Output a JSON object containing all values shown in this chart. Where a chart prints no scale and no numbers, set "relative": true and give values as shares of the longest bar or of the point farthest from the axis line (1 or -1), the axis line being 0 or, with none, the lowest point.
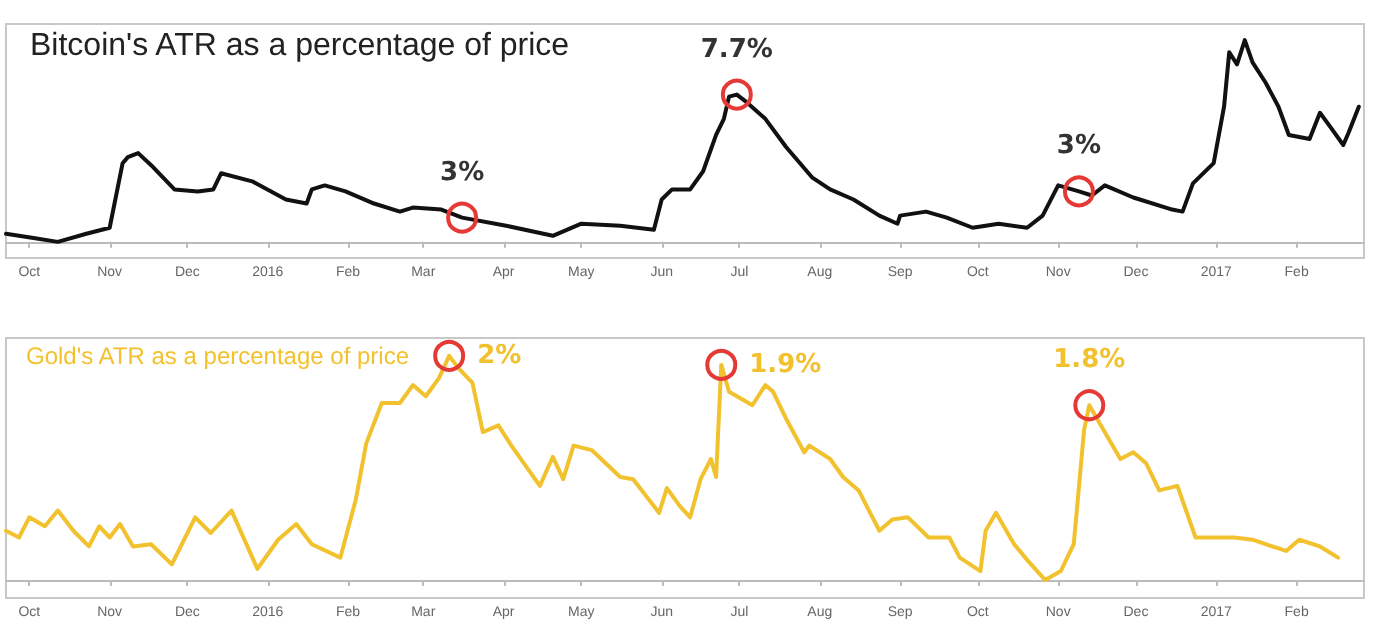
{
  "chart_data": [
    {
      "type": "line",
      "title": "Bitcoin's ATR as a percentage of price",
      "relative": true,
      "color": "#111111",
      "grid": false,
      "marker": "none",
      "line_style": "solid",
      "xlim": [
        "2015-09-22",
        "2017-02-27"
      ],
      "xticks": [
        {
          "value": "2015-10-01",
          "label": "Oct"
        },
        {
          "value": "2015-11-01",
          "label": "Nov"
        },
        {
          "value": "2015-12-01",
          "label": "Dec"
        },
        {
          "value": "2016-01-01",
          "label": "2016"
        },
        {
          "value": "2016-02-01",
          "label": "Feb"
        },
        {
          "value": "2016-03-01",
          "label": "Mar"
        },
        {
          "value": "2016-04-01",
          "label": "Apr"
        },
        {
          "value": "2016-05-01",
          "label": "May"
        },
        {
          "value": "2016-06-01",
          "label": "Jun"
        },
        {
          "value": "2016-07-01",
          "label": "Jul"
        },
        {
          "value": "2016-08-01",
          "label": "Aug"
        },
        {
          "value": "2016-09-01",
          "label": "Sep"
        },
        {
          "value": "2016-10-01",
          "label": "Oct"
        },
        {
          "value": "2016-11-01",
          "label": "Nov"
        },
        {
          "value": "2016-12-01",
          "label": "Dec"
        },
        {
          "value": "2017-01-01",
          "label": "2017"
        },
        {
          "value": "2017-02-01",
          "label": "Feb"
        }
      ],
      "x": [
        "2015-09-22",
        "2015-10-02",
        "2015-10-12",
        "2015-10-23",
        "2015-11-01",
        "2015-11-06",
        "2015-11-08",
        "2015-11-12",
        "2015-11-17",
        "2015-11-26",
        "2015-12-05",
        "2015-12-11",
        "2015-12-14",
        "2015-12-26",
        "2016-01-08",
        "2016-01-16",
        "2016-01-18",
        "2016-01-23",
        "2016-01-31",
        "2016-02-11",
        "2016-02-21",
        "2016-02-26",
        "2016-03-08",
        "2016-03-16",
        "2016-04-02",
        "2016-04-20",
        "2016-05-01",
        "2016-05-16",
        "2016-05-29",
        "2016-06-01",
        "2016-06-05",
        "2016-06-12",
        "2016-06-17",
        "2016-06-22",
        "2016-06-25",
        "2016-06-27",
        "2016-06-30",
        "2016-07-04",
        "2016-07-11",
        "2016-07-19",
        "2016-07-29",
        "2016-08-05",
        "2016-08-14",
        "2016-08-24",
        "2016-08-31",
        "2016-09-01",
        "2016-09-11",
        "2016-09-19",
        "2016-09-29",
        "2016-10-09",
        "2016-10-20",
        "2016-10-26",
        "2016-11-01",
        "2016-11-09",
        "2016-11-14",
        "2016-11-19",
        "2016-11-30",
        "2016-12-15",
        "2016-12-19",
        "2016-12-23",
        "2016-12-31",
        "2017-01-04",
        "2017-01-06",
        "2017-01-09",
        "2017-01-12",
        "2017-01-15",
        "2017-01-20",
        "2017-01-25",
        "2017-01-29",
        "2017-02-06",
        "2017-02-10",
        "2017-02-14",
        "2017-02-19",
        "2017-02-21",
        "2017-02-25"
      ],
      "values": [
        0.04,
        0.02,
        0,
        0.04,
        0.07,
        0.39,
        0.42,
        0.44,
        0.38,
        0.26,
        0.25,
        0.26,
        0.34,
        0.3,
        0.21,
        0.19,
        0.26,
        0.28,
        0.25,
        0.19,
        0.15,
        0.17,
        0.16,
        0.12,
        0.08,
        0.03,
        0.09,
        0.08,
        0.06,
        0.21,
        0.26,
        0.26,
        0.35,
        0.53,
        0.61,
        0.72,
        0.73,
        0.69,
        0.61,
        0.47,
        0.32,
        0.26,
        0.21,
        0.13,
        0.09,
        0.13,
        0.15,
        0.12,
        0.07,
        0.09,
        0.07,
        0.13,
        0.28,
        0.25,
        0.23,
        0.28,
        0.22,
        0.16,
        0.15,
        0.29,
        0.39,
        0.67,
        0.94,
        0.88,
        1,
        0.89,
        0.79,
        0.67,
        0.53,
        0.51,
        0.64,
        0.57,
        0.48,
        0.54,
        0.67
      ],
      "annotations": [
        {
          "text": "3%",
          "x": "2016-03-16",
          "y": 0.12
        },
        {
          "text": "7.7%",
          "x": "2016-06-30",
          "y": 0.73
        },
        {
          "text": "3%",
          "x": "2016-11-09",
          "y": 0.25
        }
      ]
    },
    {
      "type": "line",
      "title": "Gold's ATR as a percentage of price",
      "relative": true,
      "color": "#f2c12e",
      "grid": false,
      "marker": "none",
      "line_style": "solid",
      "xlim": [
        "2015-09-22",
        "2017-02-27"
      ],
      "xticks": [
        {
          "value": "2015-10-01",
          "label": "Oct"
        },
        {
          "value": "2015-11-01",
          "label": "Nov"
        },
        {
          "value": "2015-12-01",
          "label": "Dec"
        },
        {
          "value": "2016-01-01",
          "label": "2016"
        },
        {
          "value": "2016-02-01",
          "label": "Feb"
        },
        {
          "value": "2016-03-01",
          "label": "Mar"
        },
        {
          "value": "2016-04-01",
          "label": "Apr"
        },
        {
          "value": "2016-05-01",
          "label": "May"
        },
        {
          "value": "2016-06-01",
          "label": "Jun"
        },
        {
          "value": "2016-07-01",
          "label": "Jul"
        },
        {
          "value": "2016-08-01",
          "label": "Aug"
        },
        {
          "value": "2016-09-01",
          "label": "Sep"
        },
        {
          "value": "2016-10-01",
          "label": "Oct"
        },
        {
          "value": "2016-11-01",
          "label": "Nov"
        },
        {
          "value": "2016-12-01",
          "label": "Dec"
        },
        {
          "value": "2017-01-01",
          "label": "2017"
        },
        {
          "value": "2017-02-01",
          "label": "Feb"
        }
      ],
      "x": [
        "2015-09-22",
        "2015-09-27",
        "2015-10-01",
        "2015-10-07",
        "2015-10-12",
        "2015-10-18",
        "2015-10-24",
        "2015-10-28",
        "2015-11-01",
        "2015-11-05",
        "2015-11-10",
        "2015-11-17",
        "2015-11-25",
        "2015-12-04",
        "2015-12-10",
        "2015-12-18",
        "2015-12-28",
        "2016-01-05",
        "2016-01-12",
        "2016-01-18",
        "2016-01-29",
        "2016-02-04",
        "2016-02-08",
        "2016-02-14",
        "2016-02-21",
        "2016-02-26",
        "2016-03-02",
        "2016-03-07",
        "2016-03-11",
        "2016-03-15",
        "2016-03-20",
        "2016-03-24",
        "2016-03-30",
        "2016-04-04",
        "2016-04-15",
        "2016-04-20",
        "2016-04-24",
        "2016-04-28",
        "2016-05-05",
        "2016-05-16",
        "2016-05-21",
        "2016-05-31",
        "2016-06-03",
        "2016-06-08",
        "2016-06-12",
        "2016-06-16",
        "2016-06-20",
        "2016-06-22",
        "2016-06-24",
        "2016-06-27",
        "2016-07-06",
        "2016-07-11",
        "2016-07-14",
        "2016-07-19",
        "2016-07-26",
        "2016-07-28",
        "2016-08-05",
        "2016-08-10",
        "2016-08-16",
        "2016-08-24",
        "2016-08-29",
        "2016-09-04",
        "2016-09-12",
        "2016-09-20",
        "2016-09-24",
        "2016-10-02",
        "2016-10-04",
        "2016-10-08",
        "2016-10-15",
        "2016-10-20",
        "2016-10-27",
        "2016-11-02",
        "2016-11-07",
        "2016-11-11",
        "2016-11-13",
        "2016-11-19",
        "2016-11-25",
        "2016-11-30",
        "2016-12-05",
        "2016-12-10",
        "2016-12-17",
        "2016-12-24",
        "2016-12-31",
        "2017-01-08",
        "2017-01-15",
        "2017-01-20",
        "2017-01-28",
        "2017-02-02",
        "2017-02-10",
        "2017-02-17"
      ],
      "values": [
        0.22,
        0.19,
        0.28,
        0.24,
        0.31,
        0.22,
        0.15,
        0.24,
        0.19,
        0.25,
        0.15,
        0.16,
        0.07,
        0.28,
        0.21,
        0.31,
        0.05,
        0.18,
        0.25,
        0.16,
        0.1,
        0.36,
        0.61,
        0.79,
        0.79,
        0.87,
        0.82,
        0.9,
        1,
        0.94,
        0.88,
        0.66,
        0.69,
        0.6,
        0.42,
        0.55,
        0.45,
        0.6,
        0.58,
        0.46,
        0.45,
        0.3,
        0.41,
        0.33,
        0.28,
        0.45,
        0.54,
        0.46,
        0.96,
        0.84,
        0.78,
        0.87,
        0.84,
        0.72,
        0.57,
        0.6,
        0.54,
        0.46,
        0.4,
        0.22,
        0.27,
        0.28,
        0.19,
        0.19,
        0.1,
        0.04,
        0.22,
        0.3,
        0.16,
        0.09,
        0,
        0.04,
        0.16,
        0.67,
        0.78,
        0.66,
        0.54,
        0.57,
        0.52,
        0.4,
        0.42,
        0.19,
        0.19,
        0.19,
        0.18,
        0.16,
        0.13,
        0.18,
        0.15,
        0.1
      ],
      "annotations": [
        {
          "text": "2%",
          "x": "2016-03-11",
          "y": 1
        },
        {
          "text": "1.9%",
          "x": "2016-06-24",
          "y": 0.96
        },
        {
          "text": "1.8%",
          "x": "2016-11-13",
          "y": 0.78
        }
      ]
    }
  ]
}
